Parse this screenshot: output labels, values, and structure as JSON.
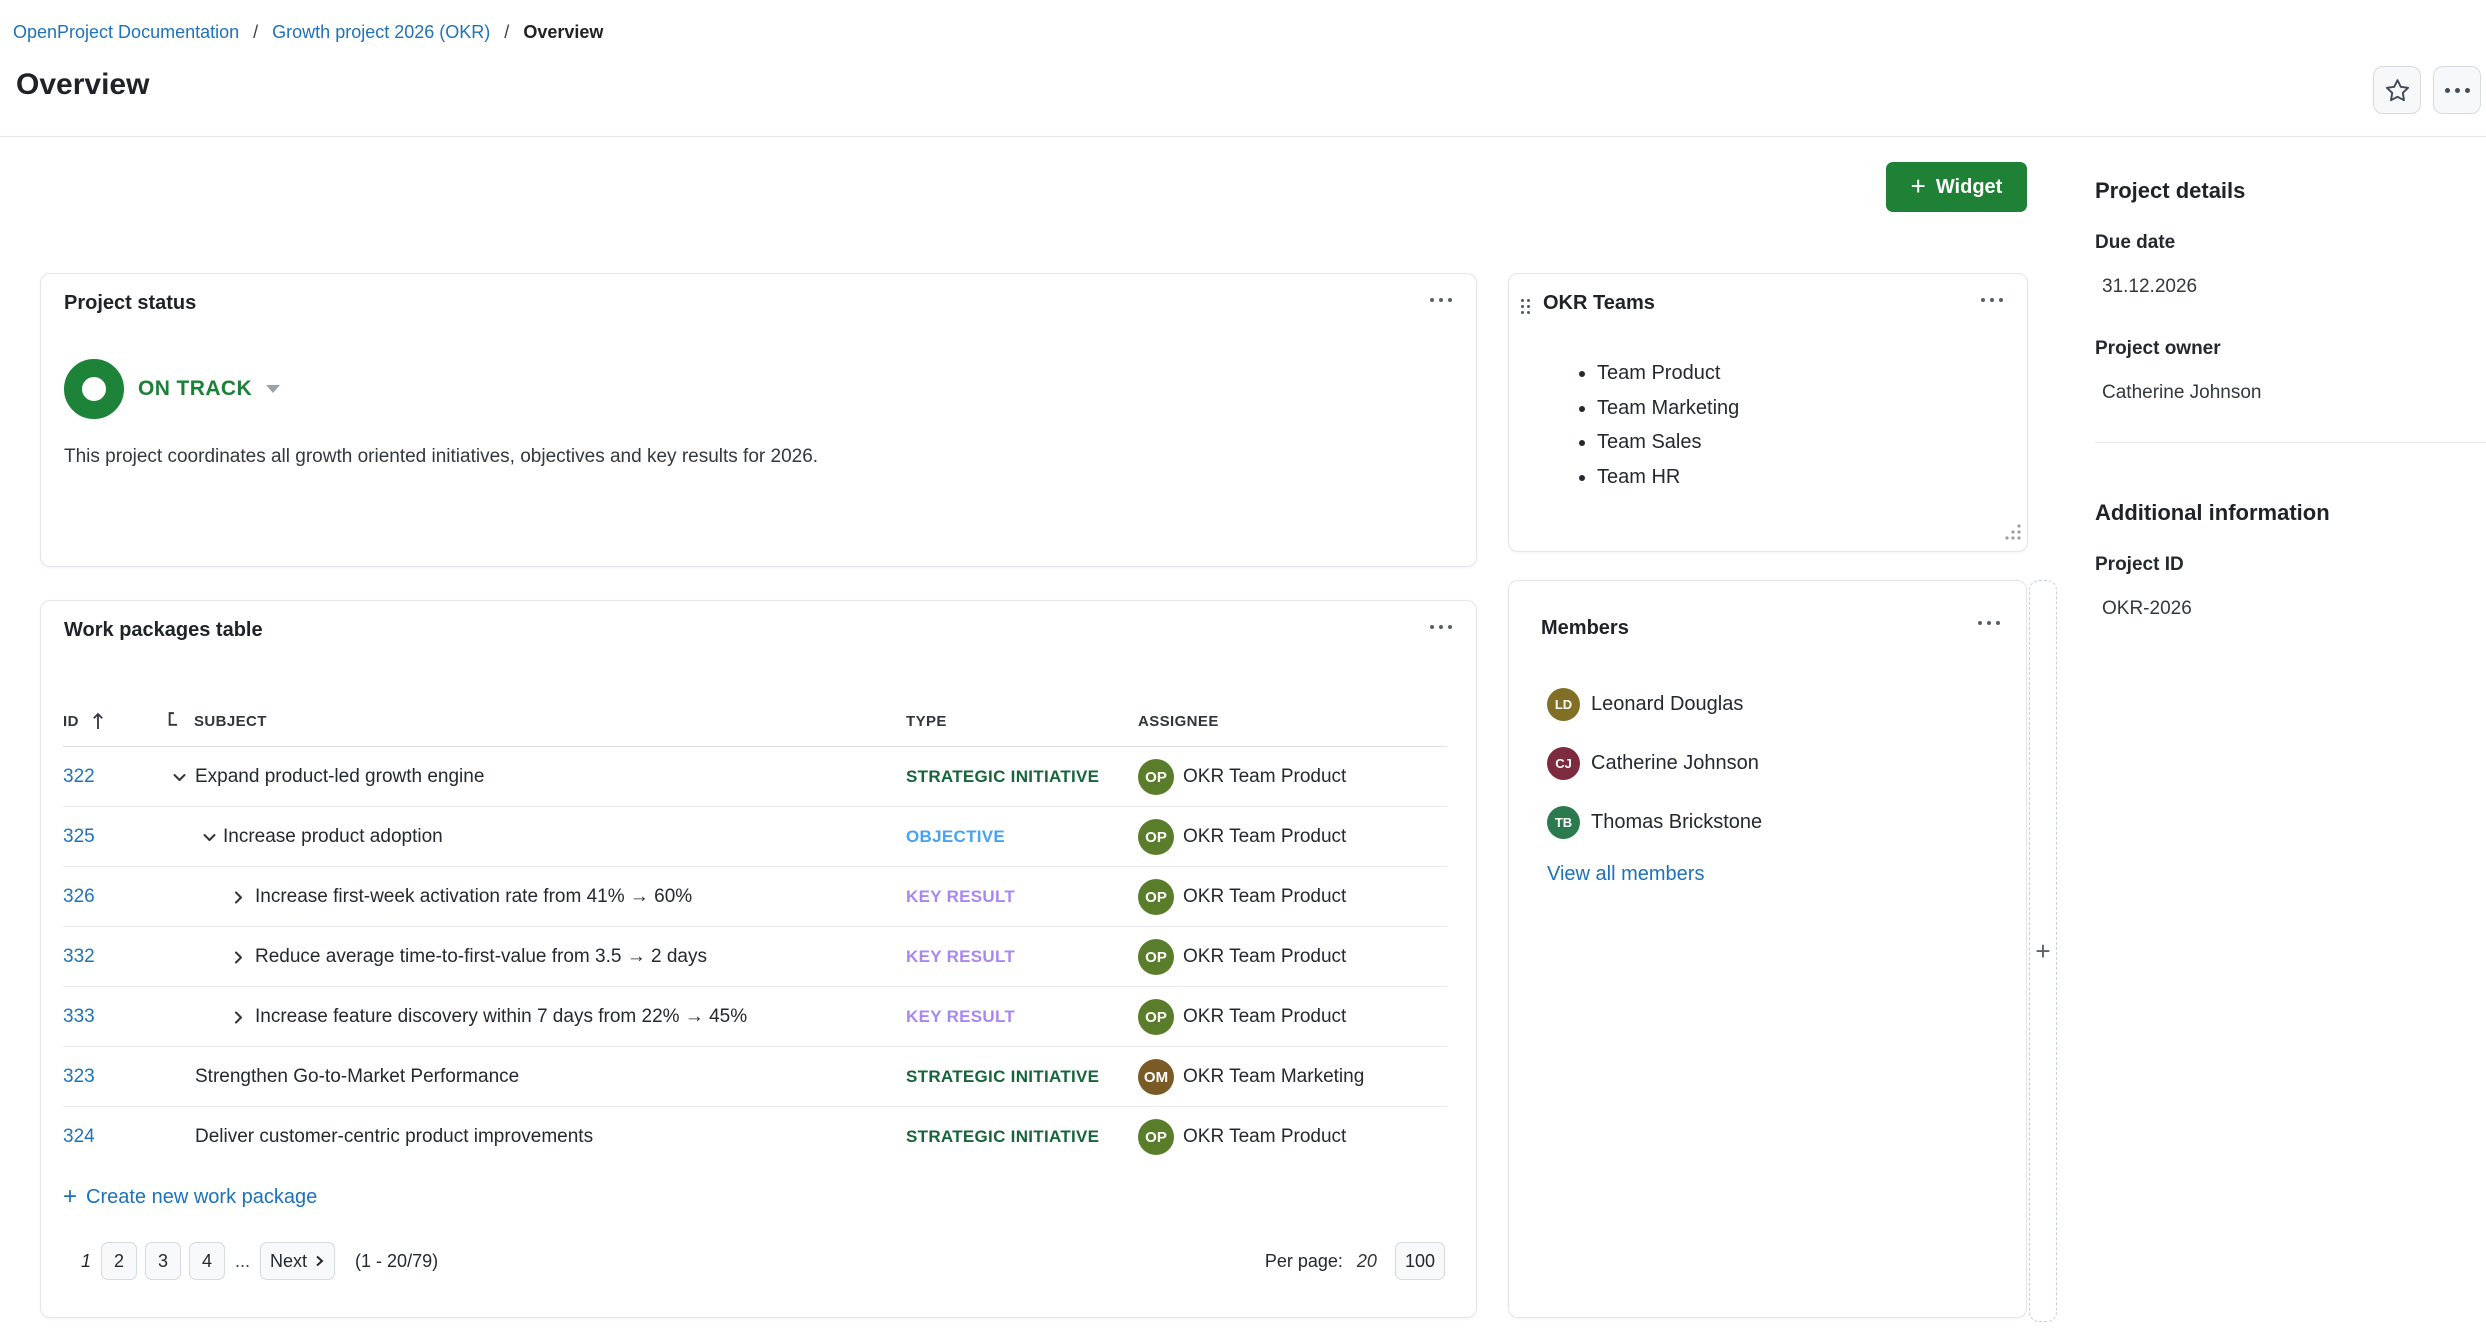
{
  "breadcrumb": {
    "separator": "/",
    "items": [
      "OpenProject Documentation",
      "Growth project 2026 (OKR)",
      "Overview"
    ]
  },
  "header": {
    "title": "Overview"
  },
  "toolbar": {
    "widget_button_label": "Widget"
  },
  "icons": {
    "add": "+",
    "more": "•••",
    "star": "☆",
    "sort_ascending": "↑",
    "hierarchy": "⊦",
    "chevron_down": "⌄",
    "chevron_right": "›",
    "drag_handle": "⠿",
    "resize_corner": "◢",
    "caret_down": "▾"
  },
  "colors": {
    "accent_green": "#1f8135",
    "status_on_track": "#1d8338",
    "link_blue": "#1f72b8",
    "type_strategic": "#16653a",
    "type_objective": "#47a3f1",
    "type_key_result": "#a987f2"
  },
  "widgets": {
    "project_status": {
      "title": "Project status",
      "status_label": "ON TRACK",
      "description": "This project coordinates all growth oriented initiatives, objectives and key results for 2026."
    },
    "okr_teams": {
      "title": "OKR Teams",
      "items": [
        "Team Product",
        "Team Marketing",
        "Team Sales",
        "Team HR"
      ]
    },
    "work_packages": {
      "title": "Work packages table",
      "columns": {
        "id": "ID",
        "subject": "SUBJECT",
        "type": "TYPE",
        "assignee": "ASSIGNEE"
      },
      "rows": [
        {
          "id": "322",
          "indent": 0,
          "chevron": "down",
          "subject": "Expand product-led growth engine",
          "type": "STRATEGIC INITIATIVE",
          "type_color": "#16653a",
          "assignee": "OKR Team Product",
          "avatar": "OP",
          "avatar_color": "#5a7d2b"
        },
        {
          "id": "325",
          "indent": 1,
          "chevron": "down",
          "subject": "Increase product adoption",
          "type": "OBJECTIVE",
          "type_color": "#47a3f1",
          "assignee": "OKR Team Product",
          "avatar": "OP",
          "avatar_color": "#5a7d2b"
        },
        {
          "id": "326",
          "indent": 2,
          "chevron": "right",
          "subject": "Increase first-week activation rate from 41% → 60%",
          "type": "KEY RESULT",
          "type_color": "#a987f2",
          "assignee": "OKR Team Product",
          "avatar": "OP",
          "avatar_color": "#5a7d2b"
        },
        {
          "id": "332",
          "indent": 2,
          "chevron": "right",
          "subject": "Reduce average time-to-first-value from 3.5 → 2 days",
          "type": "KEY RESULT",
          "type_color": "#a987f2",
          "assignee": "OKR Team Product",
          "avatar": "OP",
          "avatar_color": "#5a7d2b"
        },
        {
          "id": "333",
          "indent": 2,
          "chevron": "right",
          "subject": "Increase feature discovery within 7 days from 22% → 45%",
          "type": "KEY RESULT",
          "type_color": "#a987f2",
          "assignee": "OKR Team Product",
          "avatar": "OP",
          "avatar_color": "#5a7d2b"
        },
        {
          "id": "323",
          "indent": 0,
          "chevron": null,
          "subject": "Strengthen Go-to-Market Performance",
          "type": "STRATEGIC INITIATIVE",
          "type_color": "#16653a",
          "assignee": "OKR Team Marketing",
          "avatar": "OM",
          "avatar_color": "#7a5b25"
        },
        {
          "id": "324",
          "indent": 0,
          "chevron": null,
          "subject": "Deliver customer-centric product improvements",
          "type": "STRATEGIC INITIATIVE",
          "type_color": "#16653a",
          "assignee": "OKR Team Product",
          "avatar": "OP",
          "avatar_color": "#5a7d2b"
        }
      ],
      "create_label": "Create new work package",
      "pagination": {
        "current_page": "1",
        "pages": [
          "2",
          "3",
          "4"
        ],
        "ellipsis": "...",
        "next_label": "Next",
        "range": "(1 - 20/79)",
        "per_page_label": "Per page:",
        "per_page_current": "20",
        "per_page_options": [
          "100"
        ]
      }
    },
    "members": {
      "title": "Members",
      "items": [
        {
          "name": "Leonard Douglas",
          "initials": "LD",
          "color": "#806f25"
        },
        {
          "name": "Catherine Johnson",
          "initials": "CJ",
          "color": "#7d2b3e"
        },
        {
          "name": "Thomas Brickstone",
          "initials": "TB",
          "color": "#2a7a4d"
        }
      ],
      "view_all_label": "View all members"
    }
  },
  "sidebar": {
    "details_title": "Project details",
    "due_date_label": "Due date",
    "due_date_value": "31.12.2026",
    "owner_label": "Project owner",
    "owner_value": "Catherine Johnson",
    "additional_title": "Additional information",
    "project_id_label": "Project ID",
    "project_id_value": "OKR-2026"
  }
}
